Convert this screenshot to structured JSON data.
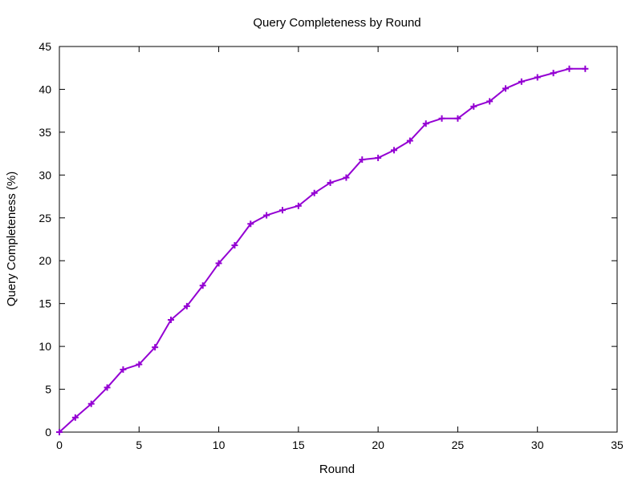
{
  "chart_data": {
    "type": "line",
    "title": "Query Completeness by Round",
    "xlabel": "Round",
    "ylabel": "Query Completeness (%)",
    "xlim": [
      0,
      35
    ],
    "ylim": [
      0,
      45
    ],
    "xticks": [
      0,
      5,
      10,
      15,
      20,
      25,
      30,
      35
    ],
    "yticks": [
      0,
      5,
      10,
      15,
      20,
      25,
      30,
      35,
      40,
      45
    ],
    "grid": false,
    "legend": "none",
    "series": [
      {
        "color": "#9400d3",
        "marker": "plus",
        "x": [
          0,
          1,
          2,
          3,
          4,
          5,
          6,
          7,
          8,
          9,
          10,
          11,
          12,
          13,
          14,
          15,
          16,
          17,
          18,
          19,
          20,
          21,
          22,
          23,
          24,
          25,
          26,
          27,
          28,
          29,
          30,
          31,
          32,
          33
        ],
        "y": [
          0,
          1.7,
          3.3,
          5.2,
          7.3,
          7.9,
          9.9,
          13.1,
          14.7,
          17.1,
          19.7,
          21.8,
          24.3,
          25.3,
          25.9,
          26.4,
          27.9,
          29.1,
          29.7,
          31.8,
          32.0,
          32.9,
          34.0,
          36.0,
          36.6,
          36.6,
          38.0,
          38.6,
          40.1,
          40.9,
          41.4,
          41.9,
          42.4,
          42.4
        ]
      }
    ]
  }
}
